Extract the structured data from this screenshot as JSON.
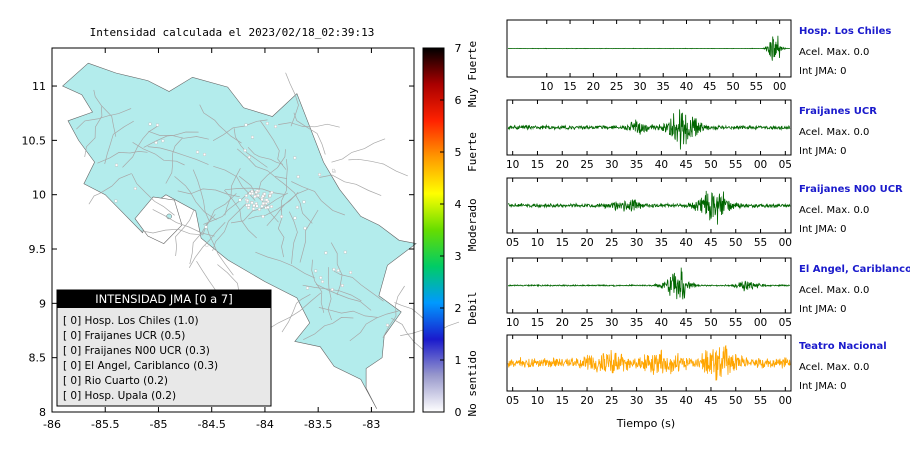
{
  "map": {
    "title": "Intensidad calculada el 2023/02/18_02:39:13",
    "x_ticks": [
      "-86",
      "-85.5",
      "-85",
      "-84.5",
      "-84",
      "-83.5",
      "-83"
    ],
    "y_ticks": [
      "11",
      "10.5",
      "10",
      "9.5",
      "9",
      "8.5",
      "8"
    ],
    "colors": {
      "land": "#b3ecec",
      "roads": "#a8a8a8",
      "frame": "#000000"
    }
  },
  "legend": {
    "header": "INTENSIDAD JMA [0 a 7]",
    "items": [
      "[ 0]  Hosp. Los Chiles (1.0)",
      "[ 0]  Fraijanes UCR (0.5)",
      "[ 0]  Fraijanes N00 UCR (0.3)",
      "[ 0]  El Angel, Cariblanco (0.3)",
      "[ 0]  Rio Cuarto (0.2)",
      "[ 0]  Hosp. Upala (0.2)"
    ]
  },
  "colorbar": {
    "ticks": [
      "7",
      "6",
      "5",
      "4",
      "3",
      "2",
      "1",
      "0"
    ],
    "labels": [
      "Muy Fuerte",
      "Fuerte",
      "Moderado",
      "Debil",
      "No sentido"
    ],
    "colors": [
      "#ffffff",
      "#9999cc",
      "#1a1acc",
      "#0099ff",
      "#00cc66",
      "#66dd00",
      "#ffff00",
      "#ff9900",
      "#ff2200",
      "#aa0000",
      "#000000"
    ]
  },
  "stations": [
    {
      "name": "Hosp. Los Chiles",
      "acel": "Acel. Max. 0.0",
      "jma": "Int JMA: 0",
      "ticks": [
        "10",
        "15",
        "20",
        "25",
        "30",
        "35",
        "40",
        "45",
        "50",
        "55",
        "00"
      ],
      "color": "#006600"
    },
    {
      "name": "Fraijanes UCR",
      "acel": "Acel. Max. 0.0",
      "jma": "Int JMA: 0",
      "ticks": [
        "10",
        "15",
        "20",
        "25",
        "30",
        "35",
        "40",
        "45",
        "50",
        "55",
        "00",
        "05"
      ],
      "color": "#006600"
    },
    {
      "name": "Fraijanes N00 UCR",
      "acel": "Acel. Max. 0.0",
      "jma": "Int JMA: 0",
      "ticks": [
        "05",
        "10",
        "15",
        "20",
        "25",
        "30",
        "35",
        "40",
        "45",
        "50",
        "55",
        "00"
      ],
      "color": "#006600"
    },
    {
      "name": "El Angel, Cariblanco",
      "acel": "Acel. Max. 0.0",
      "jma": "Int JMA: 0",
      "ticks": [
        "10",
        "15",
        "20",
        "25",
        "30",
        "35",
        "40",
        "45",
        "50",
        "55",
        "00",
        "05"
      ],
      "color": "#006600"
    },
    {
      "name": "Teatro Nacional",
      "acel": "Acel. Max. 0.0",
      "jma": "Int JMA: 0",
      "ticks": [
        "05",
        "10",
        "15",
        "20",
        "25",
        "30",
        "35",
        "40",
        "45",
        "50",
        "55",
        "00"
      ],
      "color": "#ffa500"
    }
  ],
  "time_axis_label": "Tiempo (s)",
  "chart_data": [
    {
      "type": "heatmap",
      "title": "Intensidad calculada el 2023/02/18_02:39:13",
      "xlim": [
        -86,
        -82.6
      ],
      "ylim": [
        8,
        11.35
      ],
      "colorbar_range": [
        0,
        7
      ],
      "grid": false
    },
    {
      "type": "line",
      "xlabel": "Tiempo (s)",
      "series": [
        {
          "name": "Hosp. Los Chiles"
        },
        {
          "name": "Fraijanes UCR"
        },
        {
          "name": "Fraijanes N00 UCR"
        },
        {
          "name": "El Angel, Cariblanco"
        },
        {
          "name": "Teatro Nacional"
        }
      ]
    }
  ]
}
